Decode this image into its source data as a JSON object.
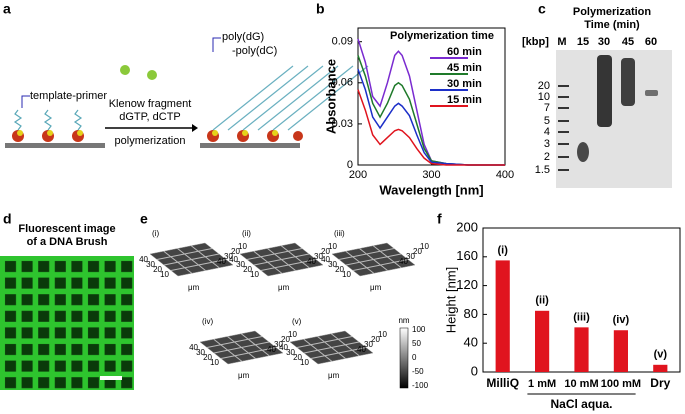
{
  "panel_labels": [
    "a",
    "b",
    "c",
    "d",
    "e",
    "f"
  ],
  "diagram_a": {
    "template_primer": "template-primer",
    "enzyme": [
      "Klenow fragment",
      "dGTP, dCTP"
    ],
    "step": "polymerization",
    "product": [
      "poly(dG)",
      "-poly(dC)"
    ]
  },
  "chart_data": [
    {
      "type": "line",
      "legend_title": "Polymerization time",
      "x_label": "Wavelength [nm]",
      "y_label": "Absorbance",
      "x": [
        200,
        210,
        220,
        230,
        240,
        250,
        255,
        260,
        270,
        280,
        290,
        300,
        320,
        350,
        400
      ],
      "series": [
        {
          "name": "60 min",
          "color": "#7a2bd0",
          "values": [
            0.092,
            0.075,
            0.05,
            0.043,
            0.06,
            0.08,
            0.083,
            0.08,
            0.065,
            0.04,
            0.015,
            0.003,
            0.001,
            0,
            0
          ]
        },
        {
          "name": "45 min",
          "color": "#1f7a2a",
          "values": [
            0.08,
            0.065,
            0.045,
            0.035,
            0.045,
            0.058,
            0.06,
            0.058,
            0.048,
            0.03,
            0.012,
            0.003,
            0.001,
            0,
            0
          ]
        },
        {
          "name": "30 min",
          "color": "#1c2fc8",
          "values": [
            0.07,
            0.055,
            0.035,
            0.027,
            0.035,
            0.043,
            0.045,
            0.043,
            0.036,
            0.022,
            0.009,
            0.002,
            0.001,
            0,
            0
          ]
        },
        {
          "name": "15 min",
          "color": "#e0141e",
          "values": [
            0.055,
            0.04,
            0.022,
            0.015,
            0.02,
            0.025,
            0.026,
            0.025,
            0.02,
            0.012,
            0.005,
            0.001,
            0,
            0,
            0
          ]
        }
      ],
      "xlim": [
        200,
        400
      ],
      "xticks": [
        200,
        300,
        400
      ],
      "ylim": [
        0,
        0.1
      ],
      "yticks": [
        0,
        0.03,
        0.06,
        0.09
      ]
    },
    {
      "type": "bar",
      "y_label": "Height [nm]",
      "x_group_label": "NaCl aqua.",
      "categories": [
        "MilliQ",
        "1 mM",
        "10 mM",
        "100 mM",
        "Dry"
      ],
      "values": [
        155,
        85,
        62,
        58,
        10
      ],
      "bar_labels": [
        "(i)",
        "(ii)",
        "(iii)",
        "(iv)",
        "(v)"
      ],
      "color": "#e0141e",
      "ylim": [
        0,
        200
      ],
      "yticks": [
        0,
        40,
        80,
        120,
        160,
        200
      ]
    }
  ],
  "gel_c": {
    "title": [
      "Polymerization",
      "Time (min)"
    ],
    "unit": "[kbp]",
    "lanes": [
      "M",
      "15",
      "30",
      "45",
      "60"
    ],
    "ladder": [
      20,
      10,
      7,
      5,
      4,
      3,
      2,
      1.5
    ]
  },
  "image_d": {
    "title": [
      "Fluorescent image",
      "of a DNA Brush"
    ]
  },
  "afm_e": {
    "panels": [
      "(i)",
      "(ii)",
      "(iii)",
      "(iv)",
      "(v)"
    ],
    "axis_ticks": [
      40,
      30,
      20,
      10
    ],
    "unit": "μm",
    "colorbar_unit": "nm",
    "colorbar_ticks": [
      100,
      50,
      0,
      -50,
      -100
    ]
  }
}
